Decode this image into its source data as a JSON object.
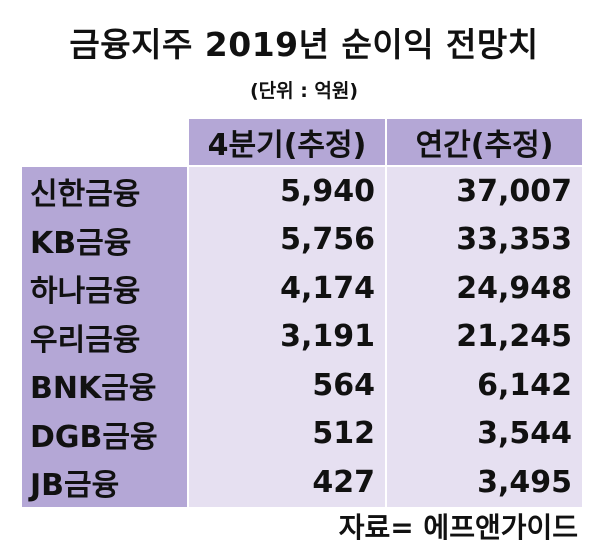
{
  "title": "금융지주 2019년 순이익 전망치",
  "unit": "(단위 : 억원)",
  "columns": [
    "4분기(추정)",
    "연간(추정)"
  ],
  "rows": [
    {
      "name": "신한금융",
      "q4": "5,940",
      "annual": "37,007"
    },
    {
      "name": "KB금융",
      "q4": "5,756",
      "annual": "33,353"
    },
    {
      "name": "하나금융",
      "q4": "4,174",
      "annual": "24,948"
    },
    {
      "name": "우리금융",
      "q4": "3,191",
      "annual": "21,245"
    },
    {
      "name": "BNK금융",
      "q4": "564",
      "annual": "6,142"
    },
    {
      "name": "DGB금융",
      "q4": "512",
      "annual": "3,544"
    },
    {
      "name": "JB금융",
      "q4": "427",
      "annual": "3,495"
    }
  ],
  "source": "자료= 에프앤가이드",
  "colors": {
    "header_bg": "#b4a7d6",
    "cell_bg": "#e6e0f1"
  }
}
